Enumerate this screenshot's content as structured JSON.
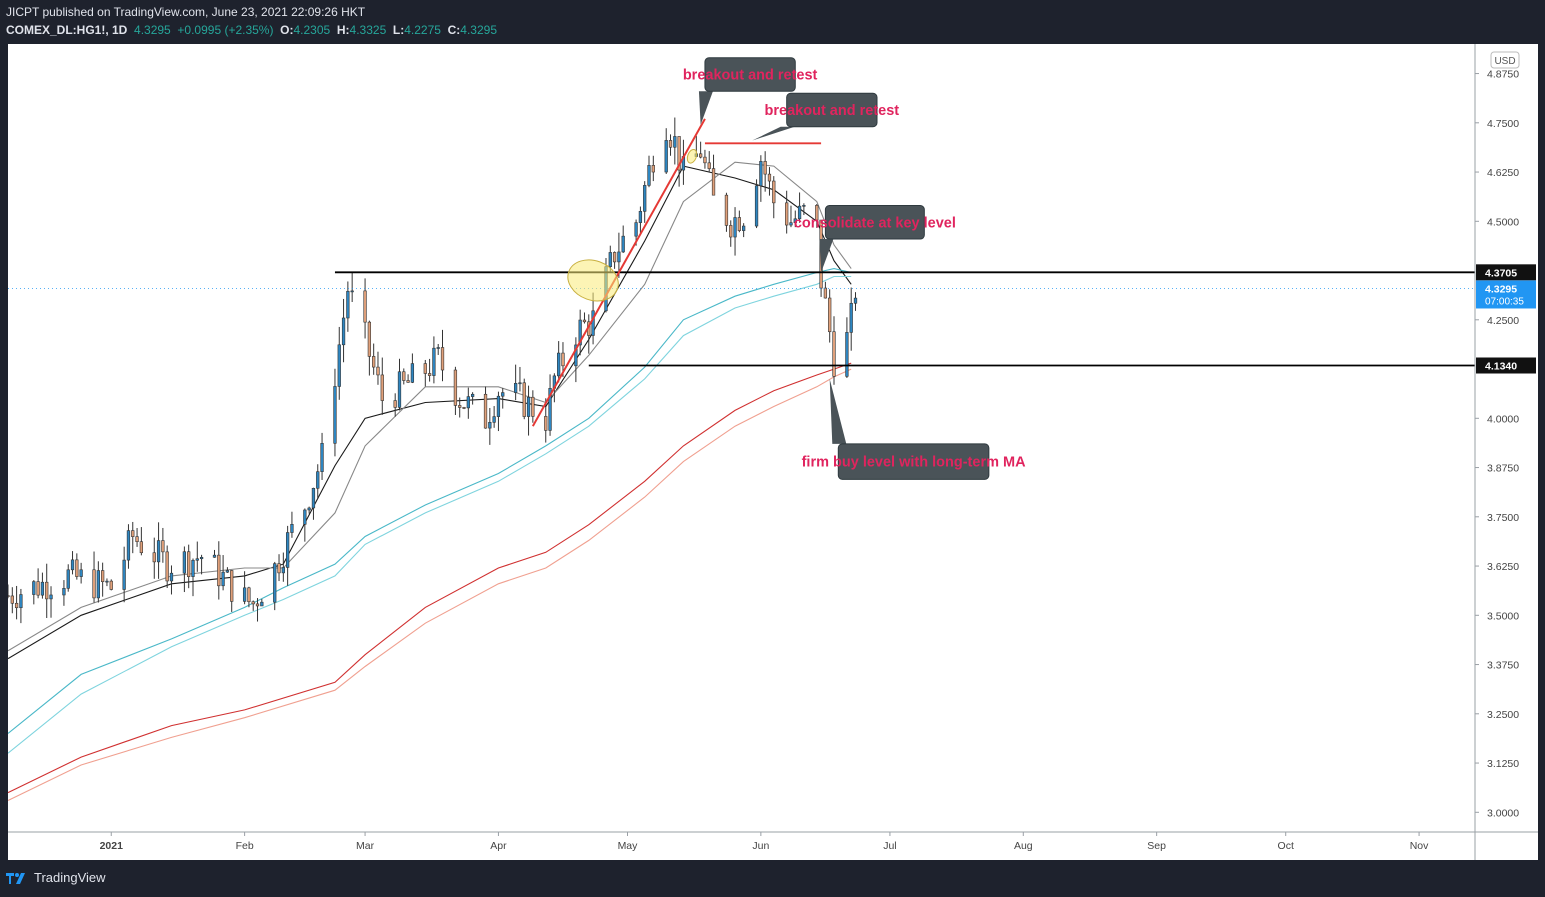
{
  "header": {
    "line1": "JICPT published on TradingView.com, June 23, 2021 22:09:26 HKT",
    "symbol": "COMEX_DL:HG1!, 1D",
    "last": "4.3295",
    "change": "+0.0995 (+2.35%)",
    "o_label": "O:",
    "o": "4.2305",
    "h_label": "H:",
    "h": "4.3325",
    "l_label": "L:",
    "l": "4.2275",
    "c_label": "C:",
    "c": "4.3295"
  },
  "currency": "USD",
  "footer": {
    "brand": "TradingView",
    "icon": "tradingview-logo-icon"
  },
  "colors": {
    "up": "#2e86c1",
    "down": "#e0a07a",
    "candle_outline": "#333333",
    "ma_black": "#1a1a1a",
    "ma_gray": "#888888",
    "ma_cyan1": "#4ab8c8",
    "ma_cyan2": "#7fd4de",
    "ma_red1": "#d03030",
    "ma_red2": "#f0a090",
    "callout_bg": "#4a5358",
    "callout_text": "#e0245e",
    "last_price": "#2196f3"
  },
  "chart_data": {
    "type": "candlestick",
    "y_range": [
      2.95,
      4.95
    ],
    "y_ticks": [
      "4.8750",
      "4.7500",
      "4.6250",
      "4.5000",
      "4.2500",
      "4.0000",
      "3.8750",
      "3.7500",
      "3.6250",
      "3.5000",
      "3.3750",
      "3.2500",
      "3.1250",
      "3.0000"
    ],
    "x_range": [
      "2020-12-08",
      "2021-11-14"
    ],
    "x_ticks": [
      {
        "label": "2021",
        "date": "2021-01-01"
      },
      {
        "label": "Feb",
        "date": "2021-02-01"
      },
      {
        "label": "Mar",
        "date": "2021-03-01"
      },
      {
        "label": "Apr",
        "date": "2021-04-01"
      },
      {
        "label": "May",
        "date": "2021-05-01"
      },
      {
        "label": "Jun",
        "date": "2021-06-01"
      },
      {
        "label": "Jul",
        "date": "2021-07-01"
      },
      {
        "label": "Aug",
        "date": "2021-08-01"
      },
      {
        "label": "Sep",
        "date": "2021-09-01"
      },
      {
        "label": "Oct",
        "date": "2021-10-01"
      },
      {
        "label": "Nov",
        "date": "2021-11-01"
      }
    ],
    "price_labels": [
      {
        "text": "4.3705",
        "price": 4.3705,
        "style": "black"
      },
      {
        "text": "4.3295",
        "price": 4.3295,
        "style": "blue",
        "sub": "07:00:35"
      },
      {
        "text": "4.1340",
        "price": 4.134,
        "style": "black"
      }
    ],
    "horizontal_lines": [
      {
        "price": 4.3705,
        "from": "2021-02-22",
        "to": "2021-11-14",
        "color": "#000000"
      },
      {
        "price": 4.134,
        "from": "2021-04-22",
        "to": "2021-11-14",
        "color": "#000000"
      },
      {
        "price": 4.698,
        "from": "2021-05-19",
        "to": "2021-06-15",
        "color": "#e53935"
      }
    ],
    "trendline": {
      "from": [
        "2021-04-09",
        3.98
      ],
      "to": [
        "2021-05-19",
        4.76
      ],
      "color": "#e53935"
    },
    "ellipses": [
      {
        "center": [
          "2021-04-23",
          4.35
        ],
        "rx_days": 6,
        "ry_price": 0.05
      },
      {
        "center": [
          "2021-05-16",
          4.665
        ],
        "rx_days": 1,
        "ry_price": 0.018
      }
    ],
    "callouts": [
      {
        "text": "breakout and retest",
        "box": [
          "2021-05-19",
          4.915,
          "2021-06-09",
          4.83
        ],
        "tip": [
          "2021-05-18",
          4.745
        ]
      },
      {
        "text": "breakout and retest",
        "box": [
          "2021-06-07",
          4.825,
          "2021-06-28",
          4.74
        ],
        "tip": [
          "2021-05-30",
          4.705
        ]
      },
      {
        "text": "consolidate at key level",
        "box": [
          "2021-06-16",
          4.54,
          "2021-07-09",
          4.455
        ],
        "tip": [
          "2021-06-15",
          4.37
        ]
      },
      {
        "text": "firm buy level with long-term MA",
        "box": [
          "2021-06-19",
          3.935,
          "2021-07-24",
          3.845
        ],
        "tip": [
          "2021-06-17",
          4.1
        ]
      }
    ],
    "series": [
      {
        "name": "",
        "color": "#1a1a1a",
        "values": [
          [
            "2020-12-08",
            3.39
          ],
          [
            "2020-12-25",
            3.5
          ],
          [
            "2021-01-15",
            3.58
          ],
          [
            "2021-02-01",
            3.6
          ],
          [
            "2021-02-10",
            3.63
          ],
          [
            "2021-02-22",
            3.88
          ],
          [
            "2021-03-01",
            4.0
          ],
          [
            "2021-03-15",
            4.04
          ],
          [
            "2021-04-01",
            4.05
          ],
          [
            "2021-04-12",
            4.03
          ],
          [
            "2021-04-22",
            4.2
          ],
          [
            "2021-05-05",
            4.45
          ],
          [
            "2021-05-14",
            4.64
          ],
          [
            "2021-05-26",
            4.61
          ],
          [
            "2021-06-04",
            4.58
          ],
          [
            "2021-06-14",
            4.5
          ],
          [
            "2021-06-18",
            4.4
          ],
          [
            "2021-06-22",
            4.34
          ]
        ]
      },
      {
        "name": "",
        "color": "#888888",
        "values": [
          [
            "2020-12-08",
            3.41
          ],
          [
            "2020-12-25",
            3.52
          ],
          [
            "2021-01-15",
            3.6
          ],
          [
            "2021-02-01",
            3.62
          ],
          [
            "2021-02-10",
            3.62
          ],
          [
            "2021-02-22",
            3.76
          ],
          [
            "2021-03-01",
            3.93
          ],
          [
            "2021-03-15",
            4.08
          ],
          [
            "2021-04-01",
            4.08
          ],
          [
            "2021-04-12",
            4.04
          ],
          [
            "2021-04-22",
            4.16
          ],
          [
            "2021-05-05",
            4.34
          ],
          [
            "2021-05-14",
            4.55
          ],
          [
            "2021-05-26",
            4.65
          ],
          [
            "2021-06-04",
            4.64
          ],
          [
            "2021-06-14",
            4.55
          ],
          [
            "2021-06-18",
            4.44
          ],
          [
            "2021-06-22",
            4.38
          ]
        ]
      },
      {
        "name": "",
        "color": "#4ab8c8",
        "values": [
          [
            "2020-12-08",
            3.2
          ],
          [
            "2020-12-25",
            3.35
          ],
          [
            "2021-01-15",
            3.44
          ],
          [
            "2021-02-01",
            3.52
          ],
          [
            "2021-02-10",
            3.57
          ],
          [
            "2021-02-22",
            3.63
          ],
          [
            "2021-03-01",
            3.7
          ],
          [
            "2021-03-15",
            3.78
          ],
          [
            "2021-04-01",
            3.86
          ],
          [
            "2021-04-12",
            3.93
          ],
          [
            "2021-04-22",
            4.0
          ],
          [
            "2021-05-05",
            4.13
          ],
          [
            "2021-05-14",
            4.25
          ],
          [
            "2021-05-26",
            4.31
          ],
          [
            "2021-06-04",
            4.34
          ],
          [
            "2021-06-14",
            4.37
          ],
          [
            "2021-06-18",
            4.38
          ],
          [
            "2021-06-22",
            4.37
          ]
        ]
      },
      {
        "name": "",
        "color": "#7fd4de",
        "values": [
          [
            "2020-12-08",
            3.15
          ],
          [
            "2020-12-25",
            3.3
          ],
          [
            "2021-01-15",
            3.42
          ],
          [
            "2021-02-01",
            3.5
          ],
          [
            "2021-02-10",
            3.54
          ],
          [
            "2021-02-22",
            3.6
          ],
          [
            "2021-03-01",
            3.68
          ],
          [
            "2021-03-15",
            3.76
          ],
          [
            "2021-04-01",
            3.84
          ],
          [
            "2021-04-12",
            3.91
          ],
          [
            "2021-04-22",
            3.98
          ],
          [
            "2021-05-05",
            4.1
          ],
          [
            "2021-05-14",
            4.21
          ],
          [
            "2021-05-26",
            4.28
          ],
          [
            "2021-06-04",
            4.31
          ],
          [
            "2021-06-14",
            4.34
          ],
          [
            "2021-06-18",
            4.36
          ],
          [
            "2021-06-22",
            4.36
          ]
        ]
      },
      {
        "name": "",
        "color": "#d03030",
        "values": [
          [
            "2020-12-08",
            3.05
          ],
          [
            "2020-12-25",
            3.14
          ],
          [
            "2021-01-15",
            3.22
          ],
          [
            "2021-02-01",
            3.26
          ],
          [
            "2021-02-22",
            3.33
          ],
          [
            "2021-03-01",
            3.4
          ],
          [
            "2021-03-15",
            3.52
          ],
          [
            "2021-04-01",
            3.62
          ],
          [
            "2021-04-12",
            3.66
          ],
          [
            "2021-04-22",
            3.73
          ],
          [
            "2021-05-05",
            3.84
          ],
          [
            "2021-05-14",
            3.93
          ],
          [
            "2021-05-26",
            4.02
          ],
          [
            "2021-06-04",
            4.07
          ],
          [
            "2021-06-14",
            4.11
          ],
          [
            "2021-06-18",
            4.125
          ],
          [
            "2021-06-22",
            4.14
          ]
        ]
      },
      {
        "name": "",
        "color": "#f0a090",
        "values": [
          [
            "2020-12-08",
            3.03
          ],
          [
            "2020-12-25",
            3.12
          ],
          [
            "2021-01-15",
            3.19
          ],
          [
            "2021-02-01",
            3.24
          ],
          [
            "2021-02-22",
            3.31
          ],
          [
            "2021-03-01",
            3.37
          ],
          [
            "2021-03-15",
            3.48
          ],
          [
            "2021-04-01",
            3.58
          ],
          [
            "2021-04-12",
            3.62
          ],
          [
            "2021-04-22",
            3.69
          ],
          [
            "2021-05-05",
            3.8
          ],
          [
            "2021-05-14",
            3.89
          ],
          [
            "2021-05-26",
            3.98
          ],
          [
            "2021-06-04",
            4.03
          ],
          [
            "2021-06-14",
            4.08
          ],
          [
            "2021-06-18",
            4.105
          ],
          [
            "2021-06-22",
            4.125
          ]
        ]
      }
    ],
    "anchors": [
      [
        "2020-12-08",
        3.55
      ],
      [
        "2020-12-22",
        3.6
      ],
      [
        "2021-01-01",
        3.57
      ],
      [
        "2021-01-06",
        3.7
      ],
      [
        "2021-01-14",
        3.63
      ],
      [
        "2021-01-22",
        3.65
      ],
      [
        "2021-02-01",
        3.54
      ],
      [
        "2021-02-03",
        3.53
      ],
      [
        "2021-02-08",
        3.62
      ],
      [
        "2021-02-15",
        3.78
      ],
      [
        "2021-02-19",
        3.9
      ],
      [
        "2021-02-25",
        4.33
      ],
      [
        "2021-03-01",
        4.2
      ],
      [
        "2021-03-05",
        4.05
      ],
      [
        "2021-03-10",
        4.08
      ],
      [
        "2021-03-18",
        4.15
      ],
      [
        "2021-03-23",
        4.05
      ],
      [
        "2021-03-29",
        4.0
      ],
      [
        "2021-04-01",
        4.07
      ],
      [
        "2021-04-06",
        4.05
      ],
      [
        "2021-04-12",
        4.0
      ],
      [
        "2021-04-14",
        4.1
      ],
      [
        "2021-04-19",
        4.22
      ],
      [
        "2021-04-23",
        4.25
      ],
      [
        "2021-04-28",
        4.42
      ],
      [
        "2021-05-03",
        4.5
      ],
      [
        "2021-05-07",
        4.67
      ],
      [
        "2021-05-10",
        4.75
      ],
      [
        "2021-05-12",
        4.7
      ],
      [
        "2021-05-14",
        4.62
      ],
      [
        "2021-05-18",
        4.68
      ],
      [
        "2021-05-21",
        4.55
      ],
      [
        "2021-05-25",
        4.5
      ],
      [
        "2021-05-28",
        4.52
      ],
      [
        "2021-06-01",
        4.66
      ],
      [
        "2021-06-04",
        4.55
      ],
      [
        "2021-06-08",
        4.5
      ],
      [
        "2021-06-11",
        4.52
      ],
      [
        "2021-06-14",
        4.48
      ],
      [
        "2021-06-15",
        4.35
      ],
      [
        "2021-06-17",
        4.22
      ],
      [
        "2021-06-18",
        4.15
      ],
      [
        "2021-06-21",
        4.2
      ],
      [
        "2021-06-22",
        4.25
      ],
      [
        "2021-06-23",
        4.3295
      ]
    ],
    "candles_mode": "generated-from-anchors"
  }
}
